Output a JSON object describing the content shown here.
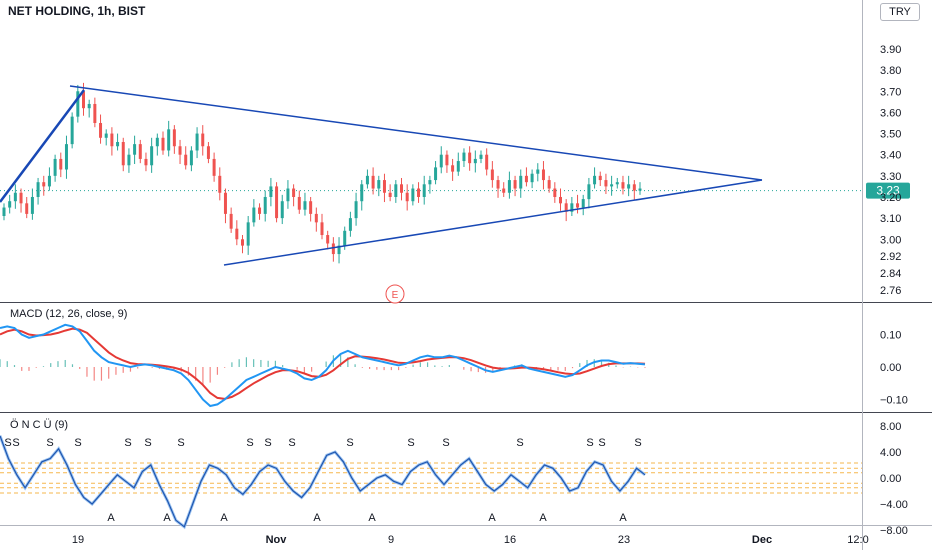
{
  "header": {
    "title": "NET HOLDING, 1h, BIST",
    "currency": "TRY"
  },
  "colors": {
    "up": "#26a69a",
    "down": "#ef5350",
    "trend": "#1848b5",
    "macd": "#2196f3",
    "signal": "#e53935",
    "osc": "#1e56b0",
    "band": "#f5a623"
  },
  "chart_data": [
    {
      "type": "candlestick",
      "series": [
        {
          "name": "NET HOLDING, 1h, BIST"
        }
      ],
      "x_labels": [
        "19",
        "Nov",
        "9",
        "16",
        "23",
        "Dec",
        "12:0"
      ],
      "y_ticks": [
        3.9,
        3.8,
        3.7,
        3.6,
        3.5,
        3.4,
        3.3,
        3.2,
        3.1,
        3.0,
        2.92,
        2.84,
        2.76
      ],
      "ylim": [
        2.73,
        3.98
      ],
      "last_price": "3.23",
      "last_value": 3.23,
      "event_marker": "E",
      "closes": [
        3.15,
        3.18,
        3.22,
        3.17,
        3.12,
        3.2,
        3.27,
        3.25,
        3.3,
        3.38,
        3.33,
        3.45,
        3.58,
        3.7,
        3.62,
        3.64,
        3.55,
        3.48,
        3.5,
        3.44,
        3.46,
        3.35,
        3.4,
        3.45,
        3.38,
        3.35,
        3.44,
        3.48,
        3.42,
        3.52,
        3.44,
        3.4,
        3.35,
        3.42,
        3.5,
        3.44,
        3.38,
        3.3,
        3.22,
        3.12,
        3.05,
        3.0,
        2.97,
        3.08,
        3.15,
        3.12,
        3.2,
        3.25,
        3.1,
        3.18,
        3.24,
        3.2,
        3.14,
        3.18,
        3.12,
        3.08,
        3.02,
        2.98,
        2.93,
        2.97,
        3.04,
        3.1,
        3.18,
        3.26,
        3.3,
        3.24,
        3.28,
        3.22,
        3.2,
        3.26,
        3.22,
        3.18,
        3.24,
        3.2,
        3.26,
        3.28,
        3.34,
        3.4,
        3.35,
        3.32,
        3.37,
        3.41,
        3.36,
        3.38,
        3.4,
        3.33,
        3.28,
        3.24,
        3.22,
        3.28,
        3.24,
        3.3,
        3.27,
        3.31,
        3.33,
        3.28,
        3.24,
        3.2,
        3.17,
        3.13,
        3.17,
        3.15,
        3.19,
        3.26,
        3.3,
        3.28,
        3.25,
        3.26,
        3.27,
        3.24,
        3.26,
        3.23,
        3.24
      ]
    },
    {
      "type": "line",
      "title": "MACD (12, 26, close, 9)",
      "y_ticks": [
        0.1,
        0.0,
        -0.1
      ],
      "y_tick_labels": [
        "0.10",
        "0.00",
        "−0.10"
      ],
      "ylim": [
        -0.155,
        0.165
      ],
      "series": [
        {
          "name": "MACD",
          "values": [
            0.12,
            0.125,
            0.12,
            0.1,
            0.09,
            0.095,
            0.1,
            0.11,
            0.12,
            0.13,
            0.125,
            0.11,
            0.08,
            0.05,
            0.03,
            0.015,
            0.01,
            0.005,
            0.0,
            0.005,
            0.008,
            0.005,
            0.0,
            -0.005,
            -0.01,
            -0.02,
            -0.04,
            -0.07,
            -0.1,
            -0.12,
            -0.115,
            -0.1,
            -0.08,
            -0.06,
            -0.04,
            -0.03,
            -0.02,
            -0.01,
            0.0,
            -0.005,
            -0.01,
            -0.02,
            -0.035,
            -0.04,
            -0.03,
            -0.01,
            0.02,
            0.04,
            0.05,
            0.04,
            0.03,
            0.025,
            0.02,
            0.015,
            0.01,
            0.005,
            0.01,
            0.02,
            0.03,
            0.035,
            0.03,
            0.03,
            0.035,
            0.03,
            0.02,
            0.01,
            0.0,
            -0.01,
            -0.015,
            -0.01,
            -0.005,
            0.0,
            0.005,
            -0.005,
            -0.01,
            -0.015,
            -0.02,
            -0.025,
            -0.03,
            -0.025,
            -0.01,
            0.005,
            0.015,
            0.02,
            0.02,
            0.015,
            0.01,
            0.012,
            0.01,
            0.008
          ]
        },
        {
          "name": "Signal",
          "values": [
            0.1,
            0.11,
            0.115,
            0.11,
            0.1,
            0.097,
            0.098,
            0.1,
            0.105,
            0.112,
            0.118,
            0.115,
            0.105,
            0.085,
            0.065,
            0.045,
            0.03,
            0.02,
            0.012,
            0.009,
            0.008,
            0.007,
            0.005,
            0.002,
            -0.002,
            -0.008,
            -0.018,
            -0.035,
            -0.055,
            -0.08,
            -0.095,
            -0.098,
            -0.092,
            -0.08,
            -0.065,
            -0.05,
            -0.038,
            -0.026,
            -0.016,
            -0.01,
            -0.01,
            -0.013,
            -0.02,
            -0.028,
            -0.03,
            -0.024,
            -0.01,
            0.008,
            0.025,
            0.033,
            0.032,
            0.03,
            0.027,
            0.023,
            0.018,
            0.013,
            0.012,
            0.014,
            0.018,
            0.023,
            0.026,
            0.028,
            0.03,
            0.03,
            0.027,
            0.021,
            0.013,
            0.005,
            -0.002,
            -0.005,
            -0.005,
            -0.004,
            -0.002,
            -0.002,
            -0.004,
            -0.007,
            -0.011,
            -0.016,
            -0.02,
            -0.022,
            -0.02,
            -0.013,
            -0.005,
            0.003,
            0.009,
            0.011,
            0.011,
            0.011,
            0.011,
            0.01
          ]
        }
      ]
    },
    {
      "type": "line",
      "title": "Ö N C Ü (9)",
      "y_ticks": [
        8.0,
        4.0,
        0.0,
        -4.0,
        -8.0
      ],
      "y_tick_labels": [
        "8.00",
        "4.00",
        "0.00",
        "−4.00",
        "−8.00"
      ],
      "ylim": [
        -8.6,
        9.6
      ],
      "bands": [
        1.5,
        -1.5
      ],
      "signals": [
        {
          "label": "S",
          "x": 8
        },
        {
          "label": "S",
          "x": 16
        },
        {
          "label": "S",
          "x": 50
        },
        {
          "label": "S",
          "x": 78
        },
        {
          "label": "S",
          "x": 128
        },
        {
          "label": "S",
          "x": 148
        },
        {
          "label": "S",
          "x": 181
        },
        {
          "label": "S",
          "x": 250
        },
        {
          "label": "S",
          "x": 268
        },
        {
          "label": "S",
          "x": 292
        },
        {
          "label": "S",
          "x": 350
        },
        {
          "label": "S",
          "x": 411
        },
        {
          "label": "S",
          "x": 446
        },
        {
          "label": "S",
          "x": 520
        },
        {
          "label": "S",
          "x": 590
        },
        {
          "label": "S",
          "x": 602
        },
        {
          "label": "S",
          "x": 638
        },
        {
          "label": "A",
          "x": 111
        },
        {
          "label": "A",
          "x": 167
        },
        {
          "label": "A",
          "x": 224
        },
        {
          "label": "A",
          "x": 317
        },
        {
          "label": "A",
          "x": 372
        },
        {
          "label": "A",
          "x": 492
        },
        {
          "label": "A",
          "x": 543
        },
        {
          "label": "A",
          "x": 623
        }
      ],
      "series": [
        {
          "name": "ÖNCÜ",
          "values": [
            6.5,
            3.0,
            0.5,
            -1.5,
            0.5,
            2.5,
            3.0,
            4.5,
            2.0,
            -1.0,
            -3.0,
            -4.0,
            -2.5,
            -1.0,
            0.5,
            -0.5,
            -1.5,
            1.0,
            2.0,
            -1.0,
            -3.5,
            -6.5,
            -7.5,
            -4.0,
            -0.5,
            2.0,
            1.5,
            0.5,
            -1.5,
            -2.5,
            -1.0,
            1.0,
            2.0,
            1.5,
            -0.5,
            -2.0,
            -3.0,
            -1.5,
            1.0,
            3.5,
            4.0,
            2.5,
            0.0,
            -2.0,
            -1.0,
            0.0,
            0.5,
            -0.5,
            -1.0,
            1.0,
            2.0,
            2.5,
            0.5,
            -1.0,
            0.5,
            2.0,
            3.0,
            1.0,
            -1.0,
            -2.0,
            -1.0,
            0.5,
            -0.5,
            -1.5,
            0.5,
            2.0,
            1.5,
            0.0,
            -2.0,
            -1.5,
            1.0,
            2.5,
            2.0,
            -0.5,
            -2.0,
            -0.5,
            1.5,
            0.5
          ]
        }
      ]
    }
  ]
}
